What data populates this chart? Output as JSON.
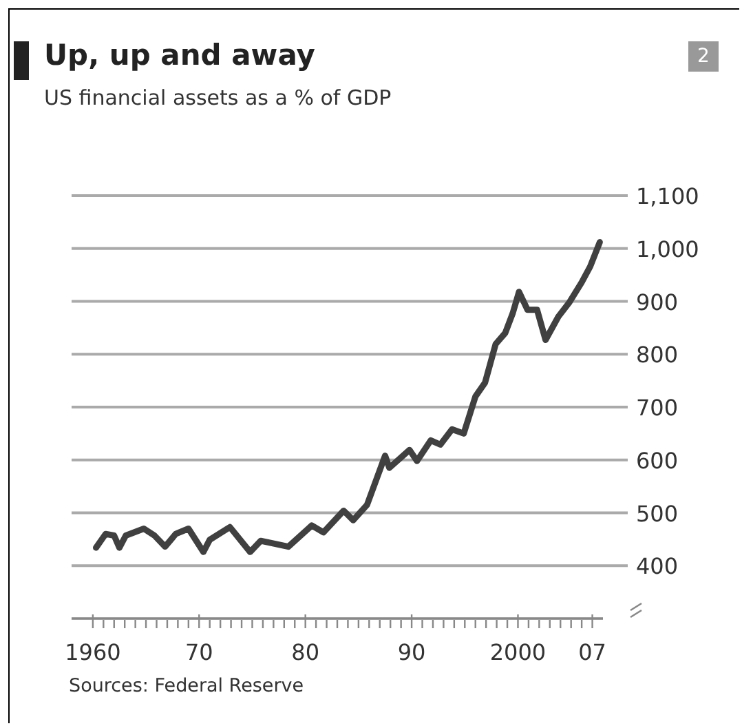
{
  "chart_data": {
    "type": "line",
    "title": "Up, up and away",
    "subtitle": "US financial assets as a % of GDP",
    "annotations": [
      "2",
      "Sources: Federal Reserve"
    ],
    "x": [
      1960.3,
      1961.2,
      1962,
      1962.5,
      1963.1,
      1964.8,
      1965.8,
      1966.8,
      1967.8,
      1969,
      1970.4,
      1971,
      1972.9,
      1974.8,
      1975.8,
      1978.4,
      1980.6,
      1981.7,
      1983.6,
      1984.5,
      1985.8,
      1987.5,
      1987.9,
      1989.8,
      1990.5,
      1991.8,
      1992.7,
      1993.8,
      1994.9,
      1996,
      1996.9,
      1997.9,
      1998.8,
      1999.5,
      2000.1,
      2000.9,
      2001.8,
      2002.6,
      2003.8,
      2004.8,
      2006,
      2006.8,
      2007.7
    ],
    "series": [
      {
        "color": "#404040",
        "values": [
          434,
          460,
          457,
          434,
          457,
          470,
          457,
          436,
          460,
          470,
          426,
          449,
          473,
          426,
          447,
          436,
          476,
          463,
          504,
          486,
          515,
          608,
          585,
          619,
          598,
          637,
          629,
          658,
          650,
          720,
          746,
          819,
          840,
          877,
          918,
          884,
          884,
          827,
          871,
          897,
          936,
          966,
          1012
        ]
      }
    ],
    "xlim": [
      1958,
      2008
    ],
    "xticks": [
      {
        "value": 1960,
        "label": "1960"
      },
      {
        "value": 1961,
        "label": null
      },
      {
        "value": 1962,
        "label": null
      },
      {
        "value": 1963,
        "label": null
      },
      {
        "value": 1964,
        "label": null
      },
      {
        "value": 1965,
        "label": null
      },
      {
        "value": 1966,
        "label": null
      },
      {
        "value": 1967,
        "label": null
      },
      {
        "value": 1968,
        "label": null
      },
      {
        "value": 1969,
        "label": null
      },
      {
        "value": 1970,
        "label": "70"
      },
      {
        "value": 1971,
        "label": null
      },
      {
        "value": 1972,
        "label": null
      },
      {
        "value": 1973,
        "label": null
      },
      {
        "value": 1974,
        "label": null
      },
      {
        "value": 1975,
        "label": null
      },
      {
        "value": 1976,
        "label": null
      },
      {
        "value": 1977,
        "label": null
      },
      {
        "value": 1978,
        "label": null
      },
      {
        "value": 1979,
        "label": null
      },
      {
        "value": 1980,
        "label": "80"
      },
      {
        "value": 1981,
        "label": null
      },
      {
        "value": 1982,
        "label": null
      },
      {
        "value": 1983,
        "label": null
      },
      {
        "value": 1984,
        "label": null
      },
      {
        "value": 1985,
        "label": null
      },
      {
        "value": 1986,
        "label": null
      },
      {
        "value": 1987,
        "label": null
      },
      {
        "value": 1988,
        "label": null
      },
      {
        "value": 1989,
        "label": null
      },
      {
        "value": 1990,
        "label": "90"
      },
      {
        "value": 1991,
        "label": null
      },
      {
        "value": 1992,
        "label": null
      },
      {
        "value": 1993,
        "label": null
      },
      {
        "value": 1994,
        "label": null
      },
      {
        "value": 1995,
        "label": null
      },
      {
        "value": 1996,
        "label": null
      },
      {
        "value": 1997,
        "label": null
      },
      {
        "value": 1998,
        "label": null
      },
      {
        "value": 1999,
        "label": null
      },
      {
        "value": 2000,
        "label": "2000"
      },
      {
        "value": 2001,
        "label": null
      },
      {
        "value": 2002,
        "label": null
      },
      {
        "value": 2003,
        "label": null
      },
      {
        "value": 2004,
        "label": null
      },
      {
        "value": 2005,
        "label": null
      },
      {
        "value": 2006,
        "label": null
      },
      {
        "value": 2007,
        "label": "07"
      }
    ],
    "ylim": [
      300,
      1100
    ],
    "yticks": [
      400,
      500,
      600,
      700,
      800,
      900,
      {
        "value": 1000,
        "label": "1,000"
      },
      {
        "value": 1100,
        "label": "1,100"
      }
    ],
    "grid": "y",
    "marker": "none",
    "line_style": "solid"
  }
}
